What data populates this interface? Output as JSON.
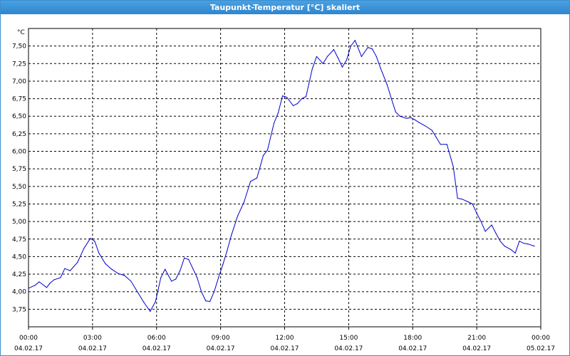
{
  "window": {
    "title": "Taupunkt-Temperatur [°C] skaliert"
  },
  "colors": {
    "series": "#0000cc",
    "titlebar": "#3a8fd0",
    "grid": "#000000"
  },
  "chart_data": {
    "type": "line",
    "title": "Taupunkt-Temperatur [°C] skaliert",
    "ylabel": "°C",
    "ylim": [
      3.5,
      7.75
    ],
    "yticks": [
      "3,75",
      "4,00",
      "4,25",
      "4,50",
      "4,75",
      "5,00",
      "5,25",
      "5,50",
      "5,75",
      "6,00",
      "6,25",
      "6,50",
      "6,75",
      "7,00",
      "7,25",
      "7,50"
    ],
    "xlim": [
      0,
      24
    ],
    "xticks": [
      {
        "time": "00:00",
        "date": "04.02.17"
      },
      {
        "time": "03:00",
        "date": "04.02.17"
      },
      {
        "time": "06:00",
        "date": "04.02.17"
      },
      {
        "time": "09:00",
        "date": "04.02.17"
      },
      {
        "time": "12:00",
        "date": "04.02.17"
      },
      {
        "time": "15:00",
        "date": "04.02.17"
      },
      {
        "time": "18:00",
        "date": "04.02.17"
      },
      {
        "time": "21:00",
        "date": "04.02.17"
      },
      {
        "time": "00:00",
        "date": "05.02.17"
      }
    ],
    "grid": true,
    "series": [
      {
        "x": [
          0,
          0.3,
          0.5,
          0.85,
          1.0,
          1.2,
          1.5,
          1.7,
          1.95,
          2.3,
          2.6,
          2.9,
          3.1,
          3.3,
          3.6,
          3.9,
          4.2,
          4.5,
          4.8,
          5.1,
          5.4,
          5.7,
          5.95,
          6.2,
          6.4,
          6.7,
          6.9,
          7.1,
          7.3,
          7.5,
          7.7,
          7.9,
          8.1,
          8.3,
          8.5,
          8.7,
          8.9,
          9.1,
          9.3,
          9.5,
          9.8,
          10.1,
          10.4,
          10.7,
          11.0,
          11.2,
          11.5,
          11.7,
          11.9,
          12.1,
          12.4,
          12.6,
          12.8,
          13.0,
          13.3,
          13.5,
          13.8,
          14.0,
          14.3,
          14.5,
          14.7,
          14.9,
          15.1,
          15.3,
          15.6,
          15.9,
          16.1,
          16.3,
          16.5,
          16.8,
          17.0,
          17.2,
          17.4,
          17.7,
          17.9,
          18.1,
          18.3,
          18.6,
          18.9,
          19.1,
          19.3,
          19.6,
          19.9,
          20.1,
          20.3,
          20.6,
          20.8,
          21.0,
          21.2,
          21.4,
          21.7,
          21.9,
          22.1,
          22.3,
          22.6,
          22.8,
          23.0,
          23.2,
          23.4,
          23.7
        ],
        "y": [
          4.05,
          4.09,
          4.14,
          4.06,
          4.12,
          4.17,
          4.2,
          4.33,
          4.3,
          4.42,
          4.62,
          4.76,
          4.72,
          4.55,
          4.4,
          4.32,
          4.26,
          4.23,
          4.15,
          4.0,
          3.85,
          3.72,
          3.86,
          4.2,
          4.32,
          4.15,
          4.18,
          4.3,
          4.48,
          4.46,
          4.33,
          4.2,
          4.0,
          3.87,
          3.86,
          4.0,
          4.2,
          4.38,
          4.58,
          4.8,
          5.08,
          5.28,
          5.57,
          5.62,
          5.94,
          6.02,
          6.4,
          6.55,
          6.79,
          6.77,
          6.65,
          6.68,
          6.75,
          6.78,
          7.18,
          7.35,
          7.25,
          7.35,
          7.45,
          7.33,
          7.2,
          7.3,
          7.5,
          7.58,
          7.35,
          7.48,
          7.46,
          7.35,
          7.18,
          6.95,
          6.75,
          6.56,
          6.5,
          6.47,
          6.48,
          6.45,
          6.41,
          6.36,
          6.3,
          6.2,
          6.1,
          6.1,
          5.78,
          5.33,
          5.32,
          5.28,
          5.25,
          5.12,
          5.0,
          4.86,
          4.95,
          4.83,
          4.72,
          4.65,
          4.6,
          4.55,
          4.72,
          4.69,
          4.68,
          4.65
        ]
      }
    ]
  }
}
